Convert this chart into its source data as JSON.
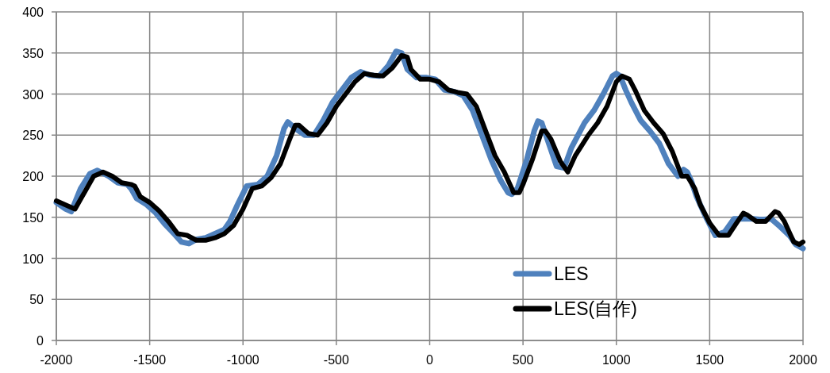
{
  "chart_data": {
    "type": "line",
    "xlim": [
      -2000,
      2000
    ],
    "ylim": [
      0,
      400
    ],
    "xticks": [
      -2000,
      -1500,
      -1000,
      -500,
      0,
      500,
      1000,
      1500,
      2000
    ],
    "yticks": [
      0,
      50,
      100,
      150,
      200,
      250,
      300,
      350,
      400
    ],
    "grid": true,
    "legend": "bottom right",
    "line_style": "solid",
    "series": [
      {
        "name": "LES",
        "color": "#4f81bd",
        "x": [
          -2000,
          -1950,
          -1920,
          -1870,
          -1820,
          -1780,
          -1720,
          -1670,
          -1620,
          -1600,
          -1570,
          -1520,
          -1470,
          -1420,
          -1370,
          -1330,
          -1290,
          -1250,
          -1200,
          -1150,
          -1100,
          -1070,
          -1030,
          -980,
          -920,
          -870,
          -820,
          -780,
          -760,
          -720,
          -670,
          -620,
          -570,
          -520,
          -470,
          -420,
          -370,
          -320,
          -270,
          -220,
          -180,
          -150,
          -120,
          -70,
          -20,
          30,
          80,
          130,
          180,
          230,
          280,
          330,
          380,
          420,
          440,
          470,
          520,
          560,
          580,
          600,
          630,
          680,
          720,
          760,
          830,
          880,
          930,
          980,
          1000,
          1020,
          1050,
          1080,
          1130,
          1180,
          1230,
          1280,
          1330,
          1360,
          1380,
          1400,
          1430,
          1480,
          1530,
          1580,
          1630,
          1680,
          1730,
          1780,
          1830,
          1880,
          1930,
          1960,
          2000
        ],
        "values": [
          168,
          160,
          157,
          185,
          203,
          207,
          200,
          192,
          190,
          185,
          173,
          166,
          156,
          142,
          130,
          120,
          118,
          123,
          125,
          130,
          135,
          145,
          165,
          188,
          190,
          200,
          225,
          258,
          266,
          258,
          250,
          250,
          268,
          290,
          305,
          320,
          327,
          323,
          322,
          335,
          352,
          350,
          330,
          320,
          320,
          318,
          305,
          303,
          298,
          280,
          250,
          220,
          195,
          180,
          178,
          185,
          220,
          255,
          267,
          265,
          245,
          212,
          210,
          235,
          265,
          280,
          300,
          322,
          325,
          322,
          305,
          290,
          268,
          255,
          240,
          215,
          200,
          208,
          205,
          195,
          175,
          150,
          128,
          132,
          148,
          148,
          148,
          147,
          148,
          138,
          127,
          117,
          112
        ]
      },
      {
        "name": "LES(自作)",
        "color": "#000000",
        "x": [
          -2000,
          -1950,
          -1900,
          -1850,
          -1800,
          -1750,
          -1700,
          -1650,
          -1600,
          -1580,
          -1550,
          -1500,
          -1450,
          -1400,
          -1350,
          -1300,
          -1250,
          -1200,
          -1150,
          -1100,
          -1050,
          -1000,
          -950,
          -900,
          -850,
          -800,
          -750,
          -720,
          -700,
          -650,
          -600,
          -550,
          -500,
          -450,
          -400,
          -350,
          -300,
          -250,
          -200,
          -150,
          -120,
          -100,
          -50,
          0,
          50,
          100,
          150,
          200,
          250,
          300,
          350,
          400,
          450,
          480,
          500,
          550,
          600,
          620,
          650,
          700,
          740,
          780,
          850,
          900,
          950,
          1000,
          1030,
          1070,
          1100,
          1150,
          1200,
          1250,
          1300,
          1350,
          1380,
          1420,
          1450,
          1500,
          1550,
          1600,
          1650,
          1680,
          1700,
          1750,
          1800,
          1850,
          1870,
          1900,
          1950,
          1980,
          2000
        ],
        "values": [
          170,
          165,
          160,
          180,
          200,
          205,
          200,
          192,
          190,
          188,
          175,
          168,
          158,
          145,
          130,
          128,
          122,
          122,
          125,
          130,
          140,
          160,
          185,
          188,
          198,
          215,
          245,
          262,
          262,
          252,
          250,
          265,
          285,
          300,
          315,
          325,
          323,
          322,
          332,
          347,
          345,
          330,
          318,
          318,
          315,
          305,
          302,
          300,
          285,
          255,
          225,
          205,
          180,
          180,
          190,
          220,
          255,
          255,
          245,
          218,
          205,
          225,
          250,
          265,
          285,
          315,
          322,
          318,
          305,
          280,
          265,
          252,
          230,
          200,
          200,
          185,
          165,
          143,
          128,
          128,
          145,
          155,
          153,
          145,
          145,
          157,
          155,
          145,
          120,
          117,
          120
        ]
      }
    ]
  }
}
